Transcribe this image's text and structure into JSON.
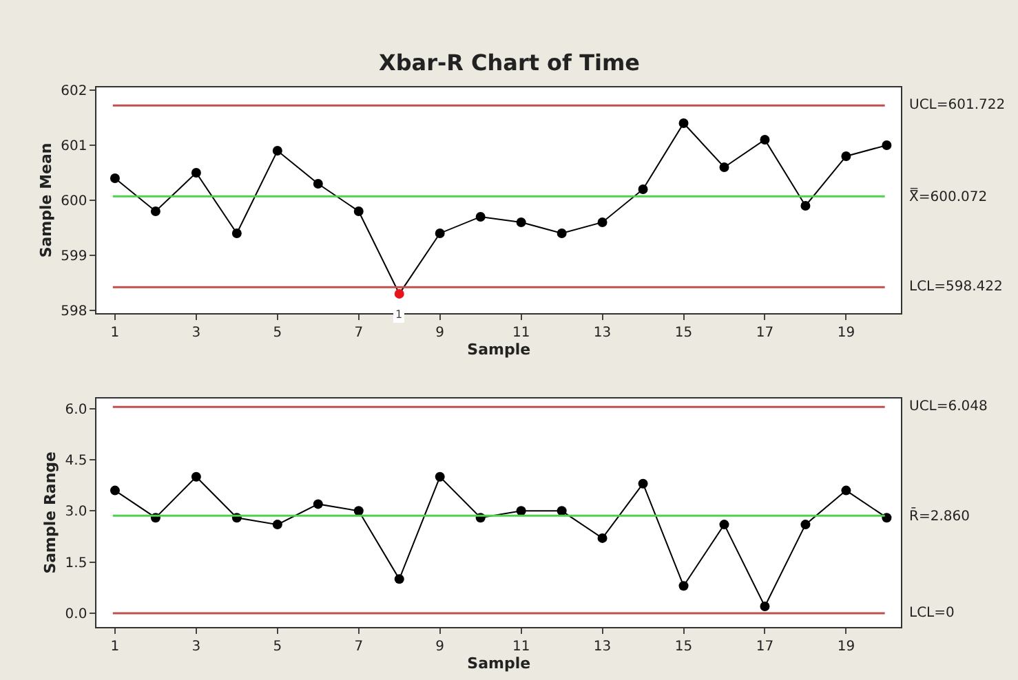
{
  "chart_data": [
    {
      "type": "line",
      "title": "Xbar-R Chart of Time",
      "xlabel": "Sample",
      "ylabel": "Sample Mean",
      "x": [
        1,
        2,
        3,
        4,
        5,
        6,
        7,
        8,
        9,
        10,
        11,
        12,
        13,
        14,
        15,
        16,
        17,
        18,
        19,
        20
      ],
      "series": [
        {
          "color": "#000000",
          "values": [
            600.4,
            599.8,
            600.5,
            599.4,
            600.9,
            600.3,
            599.8,
            598.3,
            599.4,
            599.7,
            599.6,
            599.4,
            599.6,
            600.2,
            601.4,
            600.6,
            601.1,
            599.9,
            600.8,
            601.0
          ],
          "colors": [
            "#000000",
            "#000000",
            "#000000",
            "#000000",
            "#000000",
            "#000000",
            "#000000",
            "#e8141c",
            "#000000",
            "#000000",
            "#000000",
            "#000000",
            "#000000",
            "#000000",
            "#000000",
            "#000000",
            "#000000",
            "#000000",
            "#000000",
            "#000000"
          ]
        }
      ],
      "xlim": [
        0.55,
        20.35
      ],
      "xticks": [
        1,
        3,
        5,
        7,
        9,
        11,
        13,
        15,
        17,
        19
      ],
      "ylim": [
        597.95,
        602.05
      ],
      "yticks": [
        598,
        599,
        600,
        601,
        602
      ],
      "ref_lines": [
        {
          "axis": "y",
          "value": 601.722,
          "label": "UCL=601.722",
          "color": "#c0504d"
        },
        {
          "axis": "y",
          "value": 600.072,
          "label": "X̿=600.072",
          "color": "#4fd04f"
        },
        {
          "axis": "y",
          "value": 598.422,
          "label": "LCL=598.422",
          "color": "#c0504d"
        }
      ],
      "annotations": [
        {
          "text": "1",
          "x": 8,
          "y": 598.3
        }
      ],
      "marker": "circle",
      "line_style": "solid",
      "grid": false
    },
    {
      "type": "line",
      "xlabel": "Sample",
      "ylabel": "Sample Range",
      "x": [
        1,
        2,
        3,
        4,
        5,
        6,
        7,
        8,
        9,
        10,
        11,
        12,
        13,
        14,
        15,
        16,
        17,
        18,
        19,
        20
      ],
      "series": [
        {
          "color": "#000000",
          "values": [
            3.6,
            2.8,
            4.0,
            2.8,
            2.6,
            3.2,
            3.0,
            1.0,
            4.0,
            2.8,
            3.0,
            3.0,
            2.2,
            3.8,
            0.8,
            2.6,
            0.2,
            2.6,
            3.6,
            2.8
          ]
        }
      ],
      "xlim": [
        0.55,
        20.35
      ],
      "xticks": [
        1,
        3,
        5,
        7,
        9,
        11,
        13,
        15,
        17,
        19
      ],
      "ylim": [
        -0.4,
        6.3
      ],
      "yticks": [
        {
          "value": 0,
          "label": "0.0"
        },
        {
          "value": 1.5,
          "label": "1.5"
        },
        {
          "value": 3,
          "label": "3.0"
        },
        {
          "value": 4.5,
          "label": "4.5"
        },
        {
          "value": 6,
          "label": "6.0"
        }
      ],
      "ref_lines": [
        {
          "axis": "y",
          "value": 6.048,
          "label": "UCL=6.048",
          "color": "#c0504d"
        },
        {
          "axis": "y",
          "value": 2.86,
          "label": "R̄=2.860",
          "color": "#4fd04f"
        },
        {
          "axis": "y",
          "value": 0,
          "label": "LCL=0",
          "color": "#c0504d"
        }
      ],
      "marker": "circle",
      "line_style": "solid",
      "grid": false
    }
  ]
}
